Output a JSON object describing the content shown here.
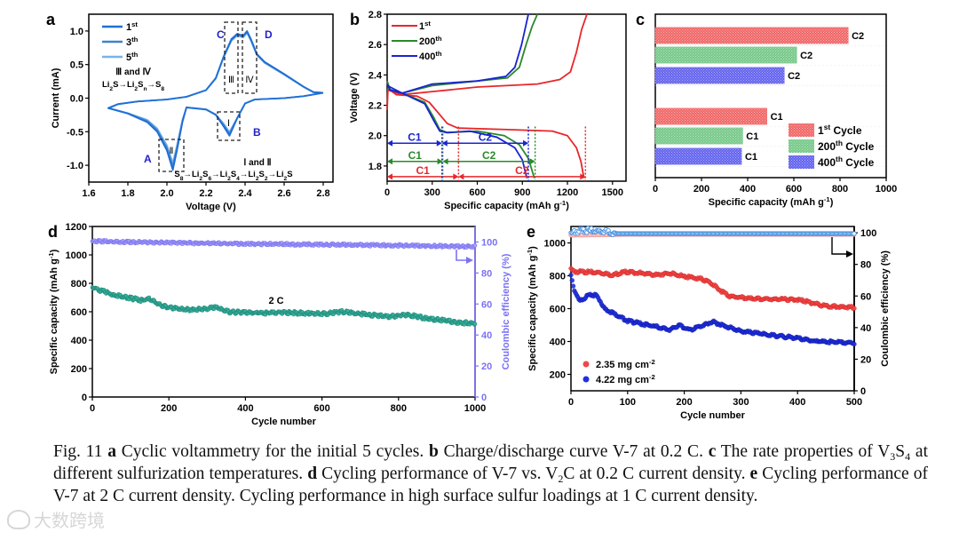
{
  "chart_data": [
    {
      "panel_label": "a",
      "type": "line",
      "xlabel": "Voltage (V)",
      "ylabel": "Current (mA)",
      "xlim": [
        1.6,
        2.85
      ],
      "ylim": [
        -1.25,
        1.25
      ],
      "xticks": [
        "1.6",
        "1.8",
        "2.0",
        "2.2",
        "2.4",
        "2.6",
        "2.8"
      ],
      "yticks": [
        "-1.0",
        "-0.5",
        "0.0",
        "0.5",
        "1.0"
      ],
      "series": [
        {
          "name": "1",
          "sup": "st",
          "color": "#1f6fd6",
          "scale": 1.0
        },
        {
          "name": "3",
          "sup": "th",
          "color": "#3d82cc",
          "scale": 0.95
        },
        {
          "name": "5",
          "sup": "th",
          "color": "#7ab2ea",
          "scale": 0.9
        }
      ],
      "curve": [
        [
          2.8,
          0.08
        ],
        [
          2.7,
          0.03
        ],
        [
          2.6,
          0.0
        ],
        [
          2.45,
          -0.02
        ],
        [
          2.4,
          -0.08
        ],
        [
          2.36,
          -0.3
        ],
        [
          2.32,
          -0.56
        ],
        [
          2.29,
          -0.42
        ],
        [
          2.25,
          -0.25
        ],
        [
          2.2,
          -0.17
        ],
        [
          2.1,
          -0.14
        ],
        [
          2.08,
          -0.35
        ],
        [
          2.05,
          -0.8
        ],
        [
          2.03,
          -1.07
        ],
        [
          2.0,
          -0.78
        ],
        [
          1.95,
          -0.5
        ],
        [
          1.9,
          -0.36
        ],
        [
          1.8,
          -0.23
        ],
        [
          1.7,
          -0.15
        ],
        [
          1.75,
          -0.09
        ],
        [
          1.85,
          -0.05
        ],
        [
          2.0,
          -0.02
        ],
        [
          2.1,
          0.02
        ],
        [
          2.2,
          0.12
        ],
        [
          2.25,
          0.3
        ],
        [
          2.29,
          0.62
        ],
        [
          2.33,
          0.88
        ],
        [
          2.36,
          0.96
        ],
        [
          2.39,
          0.93
        ],
        [
          2.41,
          1.0
        ],
        [
          2.43,
          0.88
        ],
        [
          2.46,
          0.66
        ],
        [
          2.5,
          0.54
        ],
        [
          2.6,
          0.36
        ],
        [
          2.7,
          0.17
        ],
        [
          2.75,
          0.09
        ],
        [
          2.8,
          0.08
        ]
      ],
      "annotations": {
        "peaks": [
          "A",
          "B",
          "C",
          "D"
        ],
        "regions": [
          "Ⅰ",
          "Ⅱ",
          "Ⅲ",
          "Ⅳ"
        ],
        "oxidation_title": "Ⅲ and Ⅳ",
        "oxidation_reaction": "Li2S→Li2Sn→S8",
        "reduction_title": "Ⅰ and Ⅱ",
        "reduction_reaction": "S8→Li2S6→Li2S4→Li2S2→Li2S"
      }
    },
    {
      "panel_label": "b",
      "type": "line",
      "xlabel": "Specific capacity (mAh g",
      "xlabel_sup": "-1",
      "xlabel_end": ")",
      "ylabel": "Voltage (V)",
      "xlim": [
        0,
        1590
      ],
      "ylim": [
        1.7,
        2.8
      ],
      "xticks": [
        "0",
        "300",
        "600",
        "900",
        "1200",
        "1500"
      ],
      "yticks": [
        "1.8",
        "2.0",
        "2.2",
        "2.4",
        "2.6",
        "2.8"
      ],
      "series": [
        {
          "name": "1",
          "sup": "st",
          "color": "#e8262a",
          "discharge": [
            [
              0,
              2.35
            ],
            [
              20,
              2.3
            ],
            [
              60,
              2.27
            ],
            [
              200,
              2.26
            ],
            [
              280,
              2.22
            ],
            [
              340,
              2.15
            ],
            [
              400,
              2.08
            ],
            [
              470,
              2.05
            ],
            [
              800,
              2.04
            ],
            [
              1100,
              2.03
            ],
            [
              1200,
              2.0
            ],
            [
              1260,
              1.92
            ],
            [
              1290,
              1.83
            ],
            [
              1310,
              1.72
            ]
          ],
          "charge": [
            [
              0,
              2.17
            ],
            [
              5,
              2.3
            ],
            [
              100,
              2.27
            ],
            [
              300,
              2.29
            ],
            [
              600,
              2.32
            ],
            [
              1000,
              2.34
            ],
            [
              1150,
              2.37
            ],
            [
              1220,
              2.42
            ],
            [
              1260,
              2.55
            ],
            [
              1295,
              2.7
            ],
            [
              1330,
              2.8
            ]
          ],
          "c1": 475,
          "c2_end": 1320,
          "arrow_v": 1.73
        },
        {
          "name": "200",
          "sup": "th",
          "color": "#2a8a2a",
          "discharge": [
            [
              0,
              2.36
            ],
            [
              20,
              2.3
            ],
            [
              100,
              2.28
            ],
            [
              250,
              2.22
            ],
            [
              310,
              2.12
            ],
            [
              350,
              2.04
            ],
            [
              400,
              2.02
            ],
            [
              600,
              2.03
            ],
            [
              780,
              2.0
            ],
            [
              880,
              1.94
            ],
            [
              940,
              1.85
            ],
            [
              980,
              1.72
            ]
          ],
          "charge": [
            [
              0,
              2.31
            ],
            [
              100,
              2.28
            ],
            [
              300,
              2.33
            ],
            [
              600,
              2.36
            ],
            [
              800,
              2.38
            ],
            [
              880,
              2.45
            ],
            [
              925,
              2.6
            ],
            [
              965,
              2.72
            ],
            [
              1000,
              2.8
            ]
          ],
          "c1": 370,
          "c2_end": 985,
          "arrow_v": 1.83
        },
        {
          "name": "400",
          "sup": "th",
          "color": "#1a24d0",
          "discharge": [
            [
              0,
              2.34
            ],
            [
              20,
              2.3
            ],
            [
              100,
              2.28
            ],
            [
              250,
              2.21
            ],
            [
              310,
              2.1
            ],
            [
              350,
              2.03
            ],
            [
              400,
              2.02
            ],
            [
              550,
              2.03
            ],
            [
              730,
              1.99
            ],
            [
              850,
              1.92
            ],
            [
              900,
              1.84
            ],
            [
              930,
              1.72
            ]
          ],
          "charge": [
            [
              0,
              2.33
            ],
            [
              100,
              2.28
            ],
            [
              300,
              2.34
            ],
            [
              600,
              2.36
            ],
            [
              790,
              2.39
            ],
            [
              850,
              2.45
            ],
            [
              895,
              2.6
            ],
            [
              940,
              2.8
            ]
          ],
          "c1": 365,
          "c2_end": 940,
          "arrow_v": 1.95
        }
      ],
      "region_labels": [
        "C1",
        "C2"
      ]
    },
    {
      "panel_label": "c",
      "type": "bar",
      "orientation": "horizontal",
      "xlabel": "Specific capacity (mAh g",
      "xlabel_sup": "-1",
      "xlabel_end": ")",
      "xlim": [
        0,
        1000
      ],
      "xticks": [
        "0",
        "200",
        "400",
        "600",
        "800",
        "1000"
      ],
      "categories": [
        "C2",
        "C1"
      ],
      "series": [
        {
          "name": "1",
          "sup": "st",
          "suffix": " Cycle",
          "color": "#f06868",
          "values": [
            835,
            483
          ]
        },
        {
          "name": "200",
          "sup": "th",
          "suffix": " Cycle",
          "color": "#78c98a",
          "values": [
            612,
            378
          ]
        },
        {
          "name": "400",
          "sup": "th",
          "suffix": " Cycle",
          "color": "#6464ee",
          "values": [
            558,
            373
          ]
        }
      ],
      "legend": "bottom-right"
    },
    {
      "panel_label": "d",
      "type": "scatter",
      "xlabel": "Cycle number",
      "ylabel": "Specific capacity (mAh g",
      "ylabel_sup": "-1",
      "ylabel_end": ")",
      "y2label": "Coulombic efficiency (%)",
      "xlim": [
        0,
        1000
      ],
      "ylim": [
        0,
        1200
      ],
      "y2lim": [
        0,
        110
      ],
      "xticks": [
        "0",
        "200",
        "400",
        "600",
        "800",
        "1000"
      ],
      "yticks": [
        "0",
        "200",
        "400",
        "600",
        "800",
        "1000",
        "1200"
      ],
      "y2ticks": [
        "0",
        "20",
        "40",
        "60",
        "80",
        "100"
      ],
      "annotation": "2 C",
      "capacity": {
        "color": "#1f8a78",
        "points": [
          [
            0,
            770
          ],
          [
            50,
            725
          ],
          [
            100,
            695
          ],
          [
            130,
            680
          ],
          [
            150,
            690
          ],
          [
            175,
            650
          ],
          [
            200,
            630
          ],
          [
            250,
            615
          ],
          [
            300,
            620
          ],
          [
            320,
            630
          ],
          [
            360,
            598
          ],
          [
            400,
            595
          ],
          [
            450,
            590
          ],
          [
            500,
            595
          ],
          [
            600,
            585
          ],
          [
            650,
            600
          ],
          [
            700,
            585
          ],
          [
            780,
            565
          ],
          [
            820,
            580
          ],
          [
            860,
            560
          ],
          [
            900,
            545
          ],
          [
            950,
            525
          ],
          [
            1000,
            520
          ]
        ]
      },
      "efficiency": {
        "color": "#7b72f2",
        "points": [
          [
            0,
            100.5
          ],
          [
            200,
            99.5
          ],
          [
            400,
            98.8
          ],
          [
            600,
            98.3
          ],
          [
            800,
            97.8
          ],
          [
            1000,
            97
          ]
        ]
      }
    },
    {
      "panel_label": "e",
      "type": "scatter",
      "xlabel": "Cycle number",
      "ylabel": "Specific capacity (mAh g",
      "ylabel_sup": "-1",
      "ylabel_end": ")",
      "y2label": "Coulombic efficiency (%)",
      "xlim": [
        0,
        500
      ],
      "ylim": [
        100,
        1100
      ],
      "y2lim": [
        0,
        104
      ],
      "xticks": [
        "0",
        "100",
        "200",
        "300",
        "400",
        "500"
      ],
      "yticks": [
        "200",
        "400",
        "600",
        "800",
        "1000"
      ],
      "y2ticks": [
        "0",
        "20",
        "40",
        "60",
        "80",
        "100"
      ],
      "series": [
        {
          "name": "2.35 mg cm",
          "sup": "-2",
          "color": "#f04848",
          "ce_color": "#f3a0a0",
          "capacity": [
            [
              0,
              845
            ],
            [
              5,
              825
            ],
            [
              50,
              820
            ],
            [
              70,
              805
            ],
            [
              100,
              825
            ],
            [
              150,
              805
            ],
            [
              175,
              815
            ],
            [
              200,
              795
            ],
            [
              230,
              780
            ],
            [
              245,
              760
            ],
            [
              260,
              720
            ],
            [
              280,
              675
            ],
            [
              320,
              660
            ],
            [
              400,
              655
            ],
            [
              420,
              640
            ],
            [
              450,
              615
            ],
            [
              500,
              605
            ]
          ],
          "efficiency": [
            [
              0,
              98.5
            ],
            [
              100,
              99
            ],
            [
              500,
              99
            ]
          ]
        },
        {
          "name": "4.22 mg cm",
          "sup": "-2",
          "color": "#2030e0",
          "ce_color": "#3c8ce0",
          "capacity": [
            [
              0,
              800
            ],
            [
              5,
              720
            ],
            [
              15,
              645
            ],
            [
              30,
              680
            ],
            [
              45,
              682
            ],
            [
              60,
              600
            ],
            [
              100,
              525
            ],
            [
              150,
              490
            ],
            [
              175,
              470
            ],
            [
              190,
              500
            ],
            [
              210,
              470
            ],
            [
              250,
              520
            ],
            [
              300,
              462
            ],
            [
              350,
              440
            ],
            [
              400,
              420
            ],
            [
              430,
              402
            ],
            [
              500,
              390
            ]
          ],
          "efficiency": [
            [
              0,
              100
            ],
            [
              20,
              101.5
            ],
            [
              60,
              101
            ],
            [
              80,
              99.5
            ],
            [
              100,
              99.5
            ],
            [
              500,
              99.5
            ]
          ]
        }
      ],
      "legend": "bottom-left"
    }
  ],
  "caption": [
    {
      "t": "Fig. 11 "
    },
    {
      "t": "a",
      "b": true
    },
    {
      "t": " Cyclic voltammetry for the initial 5 cycles. "
    },
    {
      "t": "b",
      "b": true
    },
    {
      "t": " Charge/discharge curve V-7 at 0.2 C. "
    },
    {
      "t": "c",
      "b": true
    },
    {
      "t": " The rate properties of V"
    },
    {
      "t": "3",
      "sub": true
    },
    {
      "t": "S"
    },
    {
      "t": "4",
      "sub": true
    },
    {
      "t": " at different sulfurization temperatures. "
    },
    {
      "t": "d",
      "b": true
    },
    {
      "t": " Cycling performance of V-7 vs. V"
    },
    {
      "t": "2",
      "sub": true
    },
    {
      "t": "C at 0.2 C current density.  "
    },
    {
      "t": "e",
      "b": true
    },
    {
      "t": " Cycling performance of V-7 at 2 C current density. Cycling performance in high surface sulfur loadings at 1 C current density."
    }
  ],
  "watermark": "大数跨境"
}
